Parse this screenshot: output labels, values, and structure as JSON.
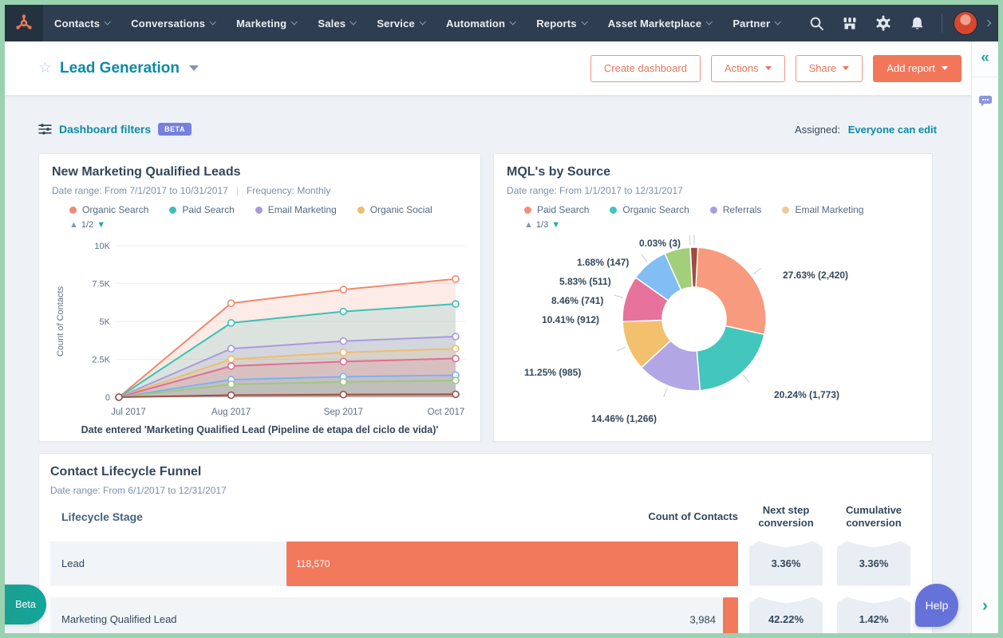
{
  "nav": {
    "items": [
      "Contacts",
      "Conversations",
      "Marketing",
      "Sales",
      "Service",
      "Automation",
      "Reports",
      "Asset Marketplace",
      "Partner"
    ],
    "icons": [
      "search",
      "marketplace",
      "settings",
      "notifications"
    ]
  },
  "header": {
    "title": "Lead Generation",
    "create_dashboard_label": "Create dashboard",
    "actions_label": "Actions",
    "share_label": "Share",
    "add_report_label": "Add report"
  },
  "filters": {
    "label": "Dashboard filters",
    "badge": "BETA",
    "assigned_label": "Assigned:",
    "assigned_value": "Everyone can edit"
  },
  "colors": {
    "accent_orange": "#f2775a",
    "teal_link": "#0d8aa5",
    "nav_bg": "#2e3d4f",
    "badge_purple": "#7580dd",
    "help_purple": "#6572d9",
    "beta_teal": "#14a396",
    "funnel_bar": "#f2795c"
  },
  "chart_data": [
    {
      "type": "area",
      "title": "New Marketing Qualified Leads",
      "date_range": "Date range: From 7/1/2017 to 10/31/2017",
      "frequency": "Frequency: Monthly",
      "legend_page": "1/2",
      "x": [
        "Jul 2017",
        "Aug 2017",
        "Sep 2017",
        "Oct 2017"
      ],
      "ylabel": "Count of Contacts",
      "xlabel": "Date entered 'Marketing Qualified Lead (Pipeline de etapa del ciclo de vida)'",
      "ylim": [
        0,
        10000
      ],
      "yticks": [
        0,
        2500,
        5000,
        7500,
        10000
      ],
      "ytick_labels": [
        "0",
        "2.5K",
        "5K",
        "7.5K",
        "10K"
      ],
      "grid": true,
      "legend_position": "top",
      "legend": [
        {
          "label": "Organic Search",
          "color": "#ef8a7a"
        },
        {
          "label": "Paid Search",
          "color": "#3fbfb5"
        },
        {
          "label": "Email Marketing",
          "color": "#a89add"
        },
        {
          "label": "Organic Social",
          "color": "#eebd6e"
        }
      ],
      "series": [
        {
          "name": "Organic Search",
          "color": "#ef8a6d",
          "values": [
            0,
            6200,
            7100,
            7800
          ]
        },
        {
          "name": "Paid Search",
          "color": "#3fbfb5",
          "values": [
            0,
            4900,
            5650,
            6150
          ]
        },
        {
          "name": "Email Marketing",
          "color": "#a89add",
          "values": [
            0,
            3200,
            3700,
            4000
          ]
        },
        {
          "name": "Organic Social",
          "color": "#eebd6e",
          "values": [
            0,
            2500,
            2950,
            3200
          ]
        },
        {
          "name": "",
          "color": "#e26d93",
          "values": [
            0,
            2050,
            2350,
            2550
          ]
        },
        {
          "name": "",
          "color": "#7cb2ee",
          "values": [
            0,
            1150,
            1350,
            1450
          ]
        },
        {
          "name": "",
          "color": "#9cc97c",
          "values": [
            0,
            850,
            1000,
            1100
          ]
        },
        {
          "name": "",
          "color": "#9e4f44",
          "values": [
            0,
            130,
            170,
            190
          ]
        }
      ]
    },
    {
      "type": "donut",
      "title": "MQL's by Source",
      "date_range": "Date range: From 1/1/2017 to 12/31/2017",
      "legend_page": "1/3",
      "legend": [
        {
          "label": "Paid Search",
          "color": "#f0907c"
        },
        {
          "label": "Organic Search",
          "color": "#43c6bc"
        },
        {
          "label": "Referrals",
          "color": "#a89fe0"
        },
        {
          "label": "Email Marketing",
          "color": "#f0c89a"
        }
      ],
      "start_angle_deg": 3,
      "slices": [
        {
          "label": "27.63% (2,420)",
          "pct": 27.63,
          "count": 2420,
          "color": "#f79a7d"
        },
        {
          "label": "20.24% (1,773)",
          "pct": 20.24,
          "count": 1773,
          "color": "#43c6bc"
        },
        {
          "label": "14.46% (1,266)",
          "pct": 14.46,
          "count": 1266,
          "color": "#b2a6e4"
        },
        {
          "label": "11.25% (985)",
          "pct": 11.25,
          "count": 985,
          "color": "#f3c06e"
        },
        {
          "label": "10.41% (912)",
          "pct": 10.41,
          "count": 912,
          "color": "#e7739c"
        },
        {
          "label": "8.46% (741)",
          "pct": 8.46,
          "count": 741,
          "color": "#82bdf4"
        },
        {
          "label": "5.83% (511)",
          "pct": 5.83,
          "count": 511,
          "color": "#a3cf7d"
        },
        {
          "label": "0.03% (3)",
          "pct": 0.03,
          "count": 3,
          "color": "#cfd8e0"
        },
        {
          "label": "1.68% (147)",
          "pct": 1.68,
          "count": 147,
          "color": "#a34b3f"
        }
      ]
    },
    {
      "type": "funnel-table",
      "title": "Contact Lifecycle Funnel",
      "date_range": "Date range: From 6/1/2017 to 12/31/2017",
      "columns": [
        "Lifecycle Stage",
        "Count of Contacts",
        "Next step conversion",
        "Cumulative conversion"
      ],
      "rows": [
        {
          "stage": "Lead",
          "count": "118,570",
          "count_raw": 118570,
          "next_step": "3.36%",
          "cumulative": "3.36%"
        },
        {
          "stage": "Marketing Qualified Lead",
          "count": "3,984",
          "count_raw": 3984,
          "next_step": "42.22%",
          "cumulative": "1.42%"
        }
      ]
    }
  ],
  "side_rail": {
    "collapse_icon": "«",
    "expand_icon": "›"
  },
  "floating": {
    "beta_label": "Beta",
    "help_label": "Help"
  }
}
